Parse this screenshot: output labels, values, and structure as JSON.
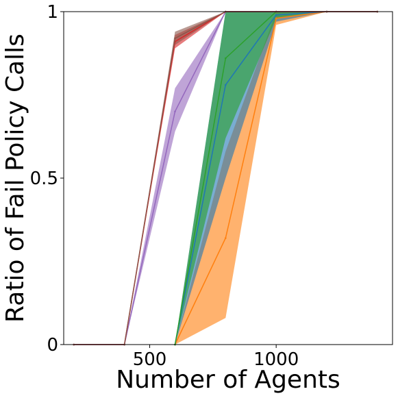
{
  "chart_data": {
    "type": "line",
    "xlabel": "Number of Agents",
    "ylabel": "Ratio of Fail Policy Calls",
    "xlim": [
      160,
      1460
    ],
    "ylim": [
      0,
      1
    ],
    "x_ticks": [
      500,
      1000
    ],
    "x_tick_labels": [
      "500",
      "1000"
    ],
    "y_ticks": [
      0,
      0.5,
      1
    ],
    "y_tick_labels": [
      "0",
      "0.5",
      "1"
    ],
    "legend": "none",
    "grid": false,
    "series": [
      {
        "color": "#ff7f0e",
        "x": [
          600,
          800,
          1000,
          1200,
          1400
        ],
        "y": [
          0.0,
          0.32,
          0.98,
          1.0,
          1.0
        ],
        "lower": [
          0.0,
          0.08,
          0.96,
          1.0,
          1.0
        ],
        "upper": [
          0.0,
          0.58,
          1.0,
          1.0,
          1.0
        ]
      },
      {
        "color": "#1f77b4",
        "x": [
          600,
          800,
          1000,
          1200,
          1400
        ],
        "y": [
          0.0,
          0.78,
          0.99,
          1.0,
          1.0
        ],
        "lower": [
          0.0,
          0.5,
          0.97,
          1.0,
          1.0
        ],
        "upper": [
          0.0,
          1.0,
          1.0,
          1.0,
          1.0
        ]
      },
      {
        "color": "#2ca02c",
        "x": [
          600,
          800,
          1000,
          1200,
          1400
        ],
        "y": [
          0.0,
          0.86,
          1.0,
          1.0,
          1.0
        ],
        "lower": [
          0.0,
          0.62,
          0.98,
          1.0,
          1.0
        ],
        "upper": [
          0.0,
          1.0,
          1.0,
          1.0,
          1.0
        ]
      },
      {
        "color": "#9467bd",
        "x": [
          200,
          400,
          600,
          800,
          1000,
          1200,
          1400
        ],
        "y": [
          0.0,
          0.0,
          0.7,
          1.0,
          1.0,
          1.0,
          1.0
        ],
        "lower": [
          0.0,
          0.0,
          0.64,
          1.0,
          1.0,
          1.0,
          1.0
        ],
        "upper": [
          0.0,
          0.0,
          0.77,
          1.0,
          1.0,
          1.0,
          1.0
        ]
      },
      {
        "color": "#d62728",
        "x": [
          200,
          400,
          600,
          800,
          1000,
          1200,
          1400
        ],
        "y": [
          0.0,
          0.0,
          0.91,
          1.0,
          1.0,
          1.0,
          1.0
        ],
        "lower": [
          0.0,
          0.0,
          0.89,
          1.0,
          1.0,
          1.0,
          1.0
        ],
        "upper": [
          0.0,
          0.0,
          0.93,
          1.0,
          1.0,
          1.0,
          1.0
        ]
      },
      {
        "color": "#8c564b",
        "x": [
          200,
          400,
          600,
          800,
          1000,
          1200,
          1400
        ],
        "y": [
          0.0,
          0.0,
          0.92,
          1.0,
          1.0,
          1.0,
          1.0
        ],
        "lower": [
          0.0,
          0.0,
          0.9,
          1.0,
          1.0,
          1.0,
          1.0
        ],
        "upper": [
          0.0,
          0.0,
          0.94,
          1.0,
          1.0,
          1.0,
          1.0
        ]
      }
    ]
  }
}
